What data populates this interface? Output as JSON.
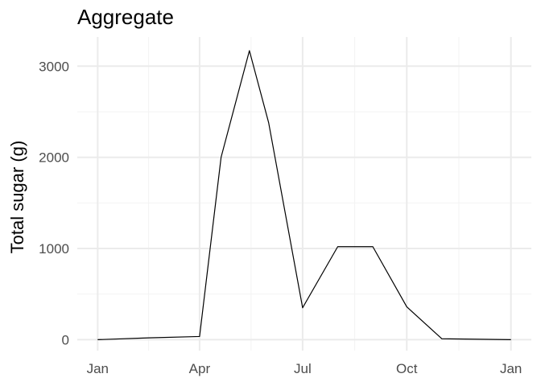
{
  "chart_data": {
    "type": "line",
    "title": "Aggregate",
    "xlabel": "",
    "ylabel": "Total sugar (g)",
    "x_tick_labels": [
      "Jan",
      "Apr",
      "Jul",
      "Oct",
      "Jan"
    ],
    "x_ticks": [
      "2023-01-01",
      "2023-04-01",
      "2023-07-01",
      "2023-10-01",
      "2024-01-01"
    ],
    "xlim": [
      "2022-12-14",
      "2024-01-19"
    ],
    "y_ticks": [
      0,
      1000,
      2000,
      3000
    ],
    "ylim": [
      -120,
      3320
    ],
    "grid": true,
    "legend": "none",
    "line_color": "#000000",
    "series": [
      {
        "x": [
          "2023-01-01",
          "2023-02-15",
          "2023-04-01",
          "2023-04-20",
          "2023-05-15",
          "2023-06-01",
          "2023-07-01",
          "2023-08-01",
          "2023-09-01",
          "2023-10-01",
          "2023-11-01",
          "2024-01-01"
        ],
        "values": [
          0,
          20,
          35,
          2000,
          3170,
          2380,
          350,
          1020,
          1020,
          360,
          10,
          0
        ]
      }
    ]
  }
}
